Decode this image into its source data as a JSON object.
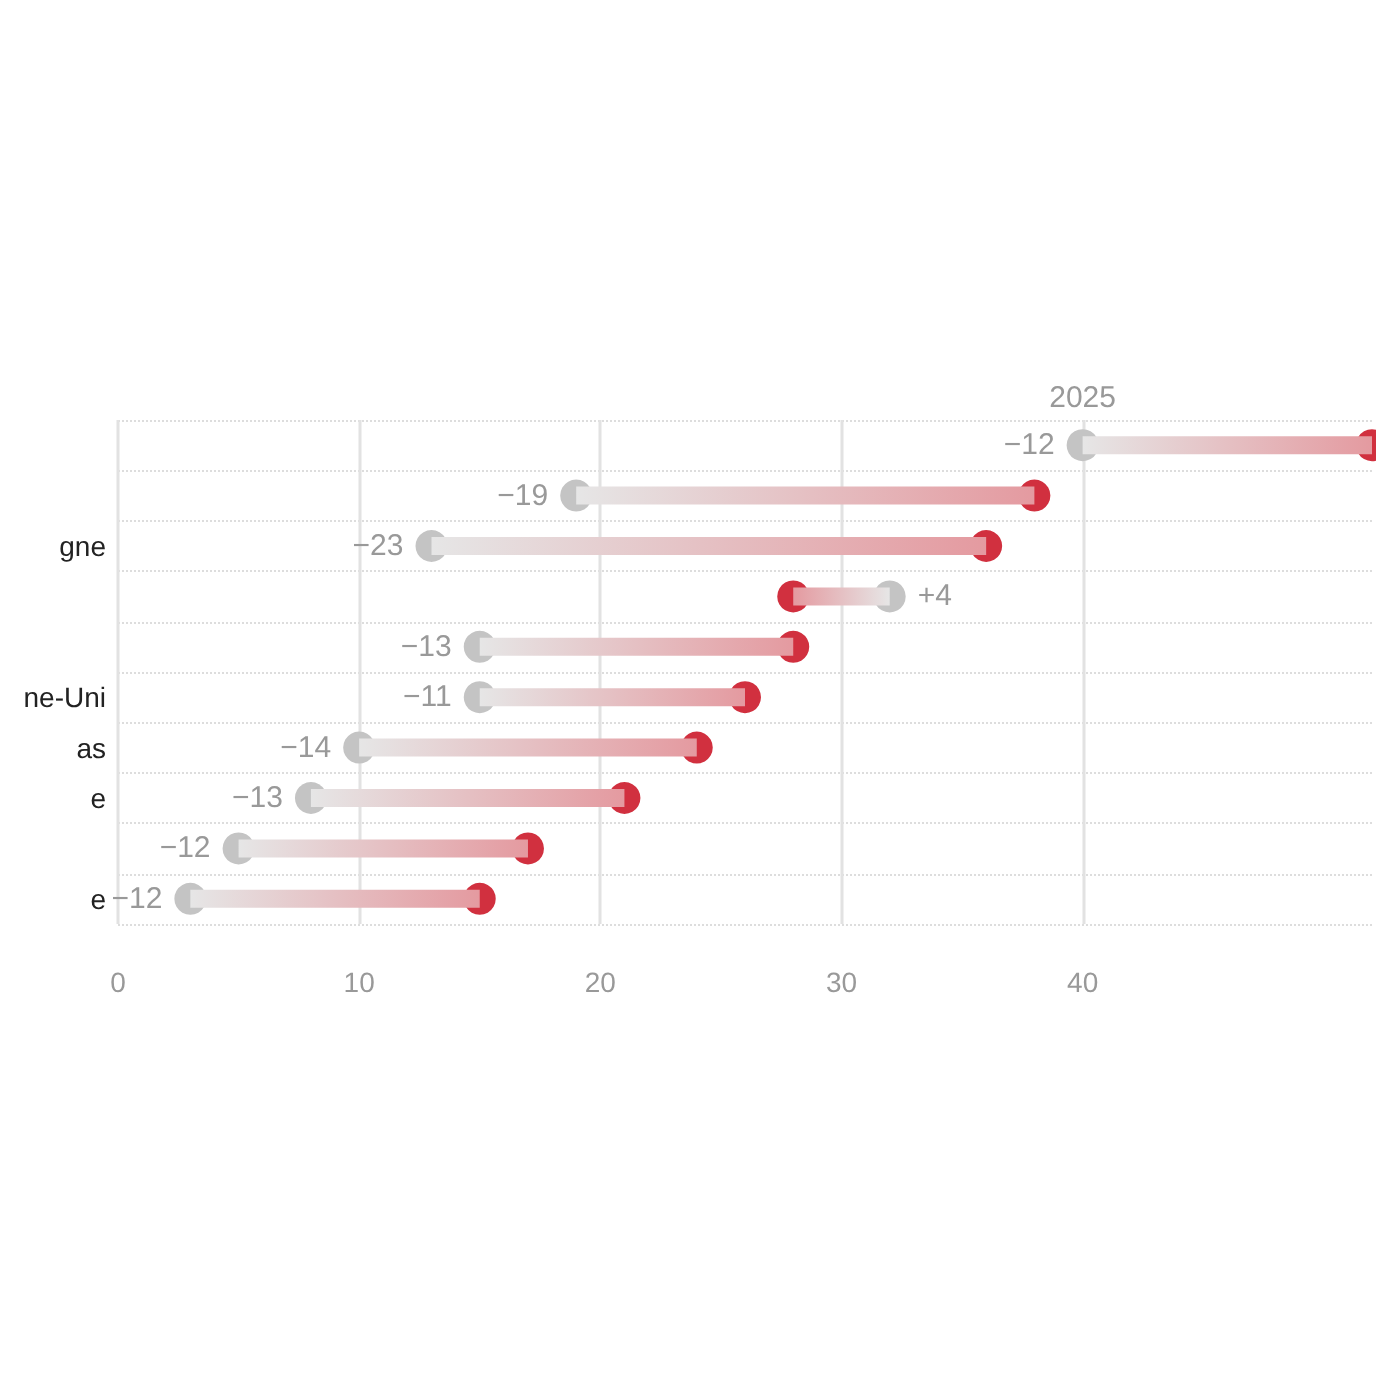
{
  "chart_data": {
    "type": "bar",
    "orientation": "horizontal",
    "categories": [
      null,
      null,
      "gne",
      null,
      null,
      "ne-Uni",
      "as",
      "e",
      null,
      "e"
    ],
    "series": [
      {
        "color": "#e49aa0",
        "base": [
          52,
          38,
          36,
          28,
          28,
          26,
          24,
          21,
          17,
          15
        ],
        "values": [
          -12,
          -19,
          -23,
          4,
          -13,
          -11,
          -14,
          -13,
          -12,
          -12
        ],
        "value_labels": [
          "−12",
          "−19",
          "−23",
          "+4",
          "−13",
          "−11",
          "−14",
          "−13",
          "−12",
          "−12"
        ]
      },
      {
        "type": "scatter",
        "name": "2025",
        "color": "#c4c4c4",
        "values": [
          40,
          19,
          13,
          32,
          15,
          15,
          10,
          8,
          5,
          3
        ]
      },
      {
        "type": "scatter",
        "color": "#d1303f",
        "values": [
          52,
          38,
          36,
          28,
          28,
          26,
          24,
          21,
          17,
          15
        ]
      }
    ],
    "xlim": [
      0,
      52
    ],
    "xticks": [
      0,
      10,
      20,
      30,
      40
    ],
    "grid": true,
    "marker": "circle"
  }
}
